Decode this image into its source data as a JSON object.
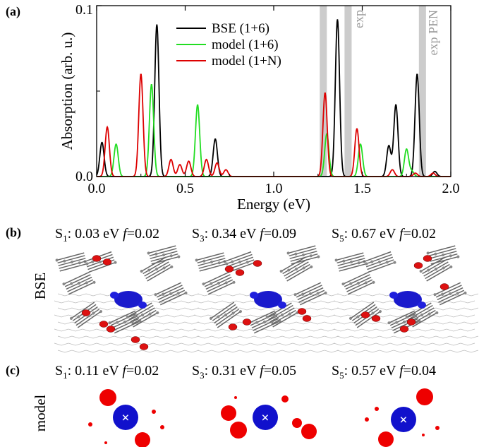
{
  "panel_labels": {
    "a": "(a)",
    "b": "(b)",
    "c": "(c)"
  },
  "chart_data": {
    "type": "line",
    "xlabel": "Energy (eV)",
    "ylabel": "Absorption (arb. u.)",
    "xlim": [
      0,
      2.0
    ],
    "ylim": [
      0,
      0.1
    ],
    "x_ticks": [
      "0.0",
      "0.5",
      "1.0",
      "1.5",
      "2.0"
    ],
    "y_ticks": [
      "0.0",
      "0.1"
    ],
    "legend_position": "top-left-center",
    "colors": {
      "bse": "#000000",
      "model6": "#22dd22",
      "modelN": "#dd0000",
      "exp": "#cccccc"
    },
    "series": [
      {
        "name": "BSE (1+6)",
        "color": "#000000",
        "peaks": [
          [
            0.03,
            0.02
          ],
          [
            0.34,
            0.089
          ],
          [
            0.67,
            0.022
          ],
          [
            1.36,
            0.092
          ],
          [
            1.65,
            0.018
          ],
          [
            1.69,
            0.042
          ],
          [
            1.81,
            0.06
          ],
          [
            1.91,
            0.003
          ]
        ]
      },
      {
        "name": "model (1+6)",
        "color": "#22dd22",
        "peaks": [
          [
            0.11,
            0.019
          ],
          [
            0.31,
            0.054
          ],
          [
            0.57,
            0.042
          ],
          [
            1.3,
            0.025
          ],
          [
            1.49,
            0.019
          ],
          [
            1.75,
            0.016
          ],
          [
            1.78,
            0.003
          ]
        ]
      },
      {
        "name": "model (1+N)",
        "color": "#dd0000",
        "peaks": [
          [
            0.06,
            0.029
          ],
          [
            0.25,
            0.06
          ],
          [
            0.42,
            0.01
          ],
          [
            0.47,
            0.007
          ],
          [
            0.52,
            0.009
          ],
          [
            0.62,
            0.01
          ],
          [
            0.68,
            0.008
          ],
          [
            0.73,
            0.004
          ],
          [
            1.29,
            0.049
          ],
          [
            1.47,
            0.028
          ],
          [
            1.67,
            0.004
          ],
          [
            1.8,
            0.002
          ],
          [
            1.9,
            0.002
          ]
        ]
      }
    ],
    "exp_bands": [
      {
        "range": [
          1.26,
          1.3
        ],
        "label": ""
      },
      {
        "range": [
          1.4,
          1.44
        ],
        "label": "exp"
      },
      {
        "range": [
          1.82,
          1.86
        ],
        "label": "exp PEN"
      }
    ]
  },
  "row_labels": {
    "bse": "BSE",
    "model": "model"
  },
  "bse_states": [
    {
      "s_main": "S",
      "s_sub": "1",
      "energy": ": 0.03 eV ",
      "f_letter": "f",
      "f_value": "=0.02"
    },
    {
      "s_main": "S",
      "s_sub": "3",
      "energy": ": 0.34 eV ",
      "f_letter": "f",
      "f_value": "=0.09"
    },
    {
      "s_main": "S",
      "s_sub": "5",
      "energy": ": 0.67 eV ",
      "f_letter": "f",
      "f_value": "=0.02"
    }
  ],
  "model_states": [
    {
      "s_main": "S",
      "s_sub": "1",
      "energy": ": 0.11 eV ",
      "f_letter": "f",
      "f_value": "=0.02"
    },
    {
      "s_main": "S",
      "s_sub": "3",
      "energy": ": 0.31 eV ",
      "f_letter": "f",
      "f_value": "=0.05"
    },
    {
      "s_main": "S",
      "s_sub": "5",
      "energy": ": 0.57 eV ",
      "f_letter": "f",
      "f_value": "=0.04"
    }
  ],
  "center_marker": "×"
}
